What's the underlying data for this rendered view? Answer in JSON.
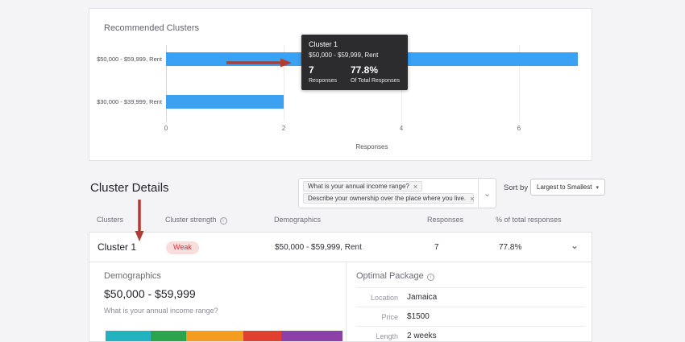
{
  "colors": {
    "bar": "#3ba1f2",
    "arrow": "#b23b33"
  },
  "icons": {
    "info": "i",
    "close": "×",
    "caret_down": "▾",
    "chevron_down": "⌄"
  },
  "recommended_clusters": {
    "title": "Recommended Clusters",
    "chart_data": {
      "type": "bar",
      "orientation": "horizontal",
      "categories": [
        "$50,000 - $59,999, Rent",
        "$30,000 - $39,999, Rent"
      ],
      "values": [
        7,
        2
      ],
      "xlim": [
        0,
        7
      ],
      "xticks": [
        "0",
        "2",
        "4",
        "6"
      ],
      "xlabel": "Responses",
      "grid": "vertical-lines"
    },
    "tooltip": {
      "title": "Cluster 1",
      "subtitle": "$50,000 - $59,999, Rent",
      "responses_value": "7",
      "responses_label": "Responses",
      "percent_value": "77.8%",
      "percent_label": "Of Total Responses"
    }
  },
  "cluster_details": {
    "heading": "Cluster Details",
    "filter_tags": [
      "What is your annual income range?",
      "Describe your ownership over the place where you live."
    ],
    "sort_label": "Sort by",
    "sort_value": "Largest to Smallest",
    "table_headers": [
      "Clusters",
      "Cluster strength",
      "Demographics",
      "Responses",
      "% of total responses"
    ],
    "row": {
      "name": "Cluster 1",
      "strength": "Weak",
      "demographics": "$50,000 - $59,999, Rent",
      "responses": "7",
      "percent": "77.8%"
    },
    "demographics_panel": {
      "title": "Demographics",
      "income_range": "$50,000 - $59,999",
      "question": "What is your annual income range?",
      "distribution": [
        {
          "color": "#23b2c1",
          "percent": 19
        },
        {
          "color": "#2ca44d",
          "percent": 15
        },
        {
          "color": "#f59b20",
          "percent": 24
        },
        {
          "color": "#e2402f",
          "percent": 16
        },
        {
          "color": "#8e3fa8",
          "percent": 26
        }
      ]
    },
    "optimal_package": {
      "title": "Optimal Package",
      "rows": [
        {
          "label": "Location",
          "value": "Jamaica"
        },
        {
          "label": "Price",
          "value": "$1500"
        },
        {
          "label": "Length",
          "value": "2 weeks"
        }
      ]
    }
  }
}
